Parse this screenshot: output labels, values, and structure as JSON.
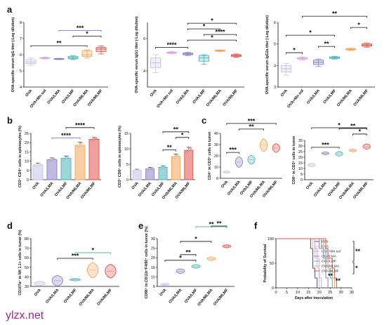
{
  "watermark": "ylzx.net",
  "colors": {
    "OVA": "#c5c3e8",
    "OVA+Mn sol": "#d9a6dc",
    "OVA/LMA": "#8c7fc7",
    "OVA/LMF": "#4fb3b8",
    "OVA/MLMA": "#f2a45a",
    "OVA/MLMF": "#e0524a",
    "PBS": "#555555",
    "green_bracket": "#2e9e84",
    "purple_bracket": "#8c5bc7",
    "purple_star": "#9b59d0",
    "teal_star": "#2aa39a",
    "black": "#111111"
  },
  "chart_data": [
    {
      "panel": "a",
      "type": "box",
      "ylabel": "OVA-specific serum IgG titer (-Log dilution)",
      "ylim": [
        4,
        8
      ],
      "yticks": [
        4,
        5,
        6,
        7,
        8
      ],
      "categories": [
        "OVA",
        "OVA+Mn sol",
        "OVA/LMA",
        "OVA/LMF",
        "OVA/MLMA",
        "OVA/MLMF"
      ],
      "boxes": [
        {
          "min": 5.35,
          "q1": 5.45,
          "median": 5.55,
          "q3": 5.7,
          "max": 5.8
        },
        {
          "min": 5.75,
          "q1": 5.78,
          "median": 5.8,
          "q3": 5.82,
          "max": 5.85
        },
        {
          "min": 5.7,
          "q1": 5.72,
          "median": 5.74,
          "q3": 5.76,
          "max": 5.78
        },
        {
          "min": 5.7,
          "q1": 5.75,
          "median": 5.82,
          "q3": 5.9,
          "max": 5.95
        },
        {
          "min": 5.8,
          "q1": 5.9,
          "median": 6.0,
          "q3": 6.25,
          "max": 6.3
        },
        {
          "min": 6.05,
          "q1": 6.2,
          "median": 6.35,
          "q3": 6.45,
          "max": 6.55
        }
      ],
      "brackets": [
        {
          "from": 0,
          "to": 4,
          "label": "**",
          "color": "black"
        },
        {
          "from": 3,
          "to": 5,
          "label": "*",
          "color": "black"
        },
        {
          "from": 2,
          "to": 5,
          "label": "***",
          "color": "purple_bracket"
        }
      ]
    },
    {
      "panel": "a",
      "type": "box",
      "ylabel": "OVA-specific serum IgG1 titer (-Log dilution)",
      "ylim": [
        3,
        7
      ],
      "yticks": [
        4,
        6
      ],
      "categories": [
        "OVA",
        "OVA+Mn sol",
        "OVA/LMA",
        "OVA/LMF",
        "OVA/MLMA",
        "OVA/MLMF"
      ],
      "boxes": [
        {
          "min": 3.9,
          "q1": 4.2,
          "median": 4.5,
          "q3": 4.8,
          "max": 5.0
        },
        {
          "min": 5.05,
          "q1": 5.1,
          "median": 5.12,
          "q3": 5.15,
          "max": 5.2
        },
        {
          "min": 4.95,
          "q1": 5.0,
          "median": 5.05,
          "q3": 5.1,
          "max": 5.15
        },
        {
          "min": 4.4,
          "q1": 4.6,
          "median": 4.8,
          "q3": 4.95,
          "max": 5.0
        },
        {
          "min": 5.2,
          "q1": 5.22,
          "median": 5.25,
          "q3": 5.28,
          "max": 5.3
        },
        {
          "min": 4.85,
          "q1": 4.9,
          "median": 4.95,
          "q3": 5.0,
          "max": 5.05
        }
      ],
      "brackets": [
        {
          "from": 0,
          "to": 2,
          "label": "****",
          "color": "black"
        },
        {
          "from": 2,
          "to": 5,
          "label": "*",
          "color": "black"
        },
        {
          "from": 3,
          "to": 5,
          "label": "****",
          "color": "black"
        },
        {
          "from": 2,
          "to": 4,
          "label": "*",
          "color": "black"
        },
        {
          "from": 2,
          "to": 5,
          "label": "*",
          "color": "black"
        }
      ]
    },
    {
      "panel": "a",
      "type": "box",
      "ylabel": "OVA-specific serum IgG2a titer (-Log dilution)",
      "ylim": [
        3,
        6
      ],
      "yticks": [
        3,
        4,
        5,
        6
      ],
      "categories": [
        "OVA",
        "OVA+Mn sol",
        "OVA/LMA",
        "OVA/LMF",
        "OVA/MLMA",
        "OVA/MLMF"
      ],
      "boxes": [
        {
          "min": 3.55,
          "q1": 3.7,
          "median": 3.85,
          "q3": 4.0,
          "max": 4.1
        },
        {
          "min": 4.25,
          "q1": 4.3,
          "median": 4.33,
          "q3": 4.36,
          "max": 4.4
        },
        {
          "min": 3.95,
          "q1": 4.05,
          "median": 4.15,
          "q3": 4.25,
          "max": 4.3
        },
        {
          "min": 4.3,
          "q1": 4.33,
          "median": 4.36,
          "q3": 4.4,
          "max": 4.43
        },
        {
          "min": 4.7,
          "q1": 4.73,
          "median": 4.75,
          "q3": 4.78,
          "max": 4.8
        },
        {
          "min": 4.85,
          "q1": 4.9,
          "median": 4.95,
          "q3": 5.0,
          "max": 5.05
        }
      ],
      "brackets": [
        {
          "from": 0,
          "to": 1,
          "label": "*",
          "color": "black"
        },
        {
          "from": 2,
          "to": 3,
          "label": "**",
          "color": "black"
        },
        {
          "from": 4,
          "to": 5,
          "label": "*",
          "color": "black"
        },
        {
          "from": 0,
          "to": 3,
          "label": "*",
          "color": "black"
        },
        {
          "from": 1,
          "to": 5,
          "label": "**",
          "color": "black"
        }
      ]
    },
    {
      "panel": "b",
      "type": "bar",
      "ylabel": "CD3⁺ CD4⁺ cells in splenocytes (%)",
      "ylim": [
        0,
        25
      ],
      "yticks": [
        0,
        5,
        10,
        15,
        20,
        25
      ],
      "categories": [
        "OVA",
        "OVA/LMA",
        "OVA/LMF",
        "OVA/MLMA",
        "OVA/MLMF"
      ],
      "values": [
        8,
        10.8,
        11.5,
        18.5,
        21.8
      ],
      "errors": [
        1.0,
        1.0,
        1.3,
        1.8,
        1.0
      ],
      "brackets": [
        {
          "from": 1,
          "to": 3,
          "label": "****",
          "color": "purple_bracket"
        },
        {
          "from": 2,
          "to": 4,
          "label": "****",
          "color": "black"
        }
      ]
    },
    {
      "panel": "b",
      "type": "bar",
      "ylabel": "CD3⁺ CD8⁺ cells in splenocytes (%)",
      "ylim": [
        0,
        15
      ],
      "yticks": [
        0,
        5,
        10,
        15
      ],
      "categories": [
        "OVA",
        "OVA/LMA",
        "OVA/LMF",
        "OVA/MLMA",
        "OVA/MLMF"
      ],
      "values": [
        3,
        3.5,
        4.0,
        7.5,
        9.5
      ],
      "errors": [
        0.4,
        0.5,
        0.5,
        0.8,
        1.0
      ],
      "brackets": [
        {
          "from": 2,
          "to": 3,
          "label": "**",
          "color": "black"
        },
        {
          "from": 3,
          "to": 4,
          "label": "*",
          "color": "black"
        },
        {
          "from": 2,
          "to": 4,
          "label": "**",
          "color": "black"
        }
      ]
    },
    {
      "panel": "c",
      "type": "violin",
      "ylabel": "CD4⁺ in CD3⁺ cells in tumor",
      "ylim": [
        0,
        40
      ],
      "yticks": [
        0,
        10,
        20,
        30,
        40
      ],
      "categories": [
        "OVA",
        "OVA/LMA",
        "OVA/LMF",
        "OVA/MLMA",
        "OVA/MLMF"
      ],
      "values": [
        5.5,
        14.5,
        16.5,
        29.5,
        27
      ],
      "spread": [
        0.6,
        3.0,
        2.5,
        3.5,
        2.5
      ],
      "brackets": [
        {
          "from": 0,
          "to": 1,
          "label": "***",
          "color": "black"
        },
        {
          "from": 1,
          "to": 3,
          "label": "**",
          "color": "black"
        },
        {
          "from": 0,
          "to": 4,
          "label": "***",
          "color": "black"
        }
      ]
    },
    {
      "panel": "c",
      "type": "violin",
      "ylabel": "CD8⁺ in CD3⁺ cells in tumor",
      "ylim": [
        0,
        35
      ],
      "yticks": [
        0,
        5,
        10,
        15,
        20,
        25,
        30,
        35
      ],
      "categories": [
        "OVA",
        "OVA/LMA",
        "OVA/LMF",
        "OVA/MLMA",
        "OVA/MLMF"
      ],
      "values": [
        13,
        23.5,
        23,
        26,
        29.5
      ],
      "spread": [
        1.0,
        0.8,
        1.3,
        0.8,
        1.5
      ],
      "brackets": [
        {
          "from": 0,
          "to": 2,
          "label": "***",
          "color": "black"
        },
        {
          "from": 3,
          "to": 4,
          "label": "*",
          "color": "black"
        },
        {
          "from": 2,
          "to": 4,
          "label": "**",
          "color": "black"
        },
        {
          "from": 0,
          "to": 4,
          "label": "*",
          "color": "black"
        }
      ]
    },
    {
      "panel": "d",
      "type": "violin",
      "ylabel": "CD107a⁺ in NK 1.1+ cells in tumor (%)",
      "ylim": [
        30,
        80
      ],
      "yticks": [
        30,
        40,
        50,
        60,
        70,
        80
      ],
      "categories": [
        "OVA",
        "OVA/LMA",
        "OVA/LMF",
        "OVA/MLMA",
        "OVA/MLMF"
      ],
      "values": [
        33,
        36,
        37,
        47,
        46
      ],
      "spread": [
        1.5,
        3.5,
        0.8,
        5.0,
        4.5
      ],
      "brackets": [
        {
          "from": 1,
          "to": 3,
          "label": "***",
          "color": "black"
        },
        {
          "from": 2,
          "to": 4,
          "label": "*",
          "color": "green_bracket"
        }
      ]
    },
    {
      "panel": "e",
      "type": "violin",
      "ylabel": "CD86⁺ in CD11b⁺F4/80⁺ cells in tumor (%)",
      "ylim": [
        5,
        30
      ],
      "yticks": [
        5,
        10,
        15,
        20,
        25,
        30
      ],
      "categories": [
        "OVA",
        "OVA/LMA",
        "OVA/LMF",
        "OVA/MLMA",
        "OVA/MLMF"
      ],
      "values": [
        6,
        13,
        15.5,
        19.5,
        26
      ],
      "spread": [
        0.3,
        0.8,
        0.6,
        0.6,
        0.5
      ],
      "brackets": [
        {
          "from": 0,
          "to": 2,
          "label": "*",
          "color": "black"
        },
        {
          "from": 1,
          "to": 2,
          "label": "**",
          "color": "black"
        },
        {
          "from": 1,
          "to": 3,
          "label": "*",
          "color": "black"
        },
        {
          "from": 3,
          "to": 4,
          "label": "**",
          "color": "black"
        },
        {
          "from": 2,
          "to": 4,
          "label": "**",
          "color": "green_bracket"
        }
      ]
    },
    {
      "panel": "f",
      "type": "line",
      "ylabel": "Probability of Survival",
      "xlabel": "Days after inoculation",
      "xlim": [
        0,
        35
      ],
      "xticks": [
        0,
        5,
        10,
        15,
        20,
        25,
        30,
        35
      ],
      "ylim": [
        0,
        100
      ],
      "yticks": [
        0,
        50,
        100
      ],
      "series": [
        {
          "name": "PBS",
          "color": "PBS",
          "x": [
            0,
            16,
            17,
            18,
            19
          ],
          "y": [
            100,
            80,
            40,
            20,
            0
          ]
        },
        {
          "name": "OVA",
          "color": "OVA",
          "x": [
            0,
            17,
            18,
            19,
            20
          ],
          "y": [
            100,
            80,
            60,
            40,
            0
          ]
        },
        {
          "name": "OVA+Mn sol",
          "color": "OVA+Mn sol",
          "x": [
            0,
            18,
            19,
            20,
            21
          ],
          "y": [
            100,
            80,
            60,
            20,
            0
          ]
        },
        {
          "name": "OVA/LMA",
          "color": "OVA/LMA",
          "x": [
            0,
            20,
            22,
            23,
            24
          ],
          "y": [
            100,
            80,
            60,
            20,
            0
          ]
        },
        {
          "name": "OVA/LMF",
          "color": "OVA/LMF",
          "x": [
            0,
            21,
            23,
            24,
            25,
            26
          ],
          "y": [
            100,
            80,
            60,
            40,
            20,
            0
          ]
        },
        {
          "name": "OVA/MLMA",
          "color": "OVA/MLMA",
          "x": [
            0,
            22,
            24,
            26,
            27
          ],
          "y": [
            100,
            80,
            40,
            20,
            0
          ]
        },
        {
          "name": "OVA/MLMF",
          "color": "OVA/MLMF",
          "x": [
            0,
            23,
            24,
            26,
            27,
            28
          ],
          "y": [
            100,
            80,
            60,
            40,
            20,
            0
          ]
        }
      ],
      "annotations": [
        "**",
        "**",
        "**",
        "*"
      ]
    }
  ]
}
